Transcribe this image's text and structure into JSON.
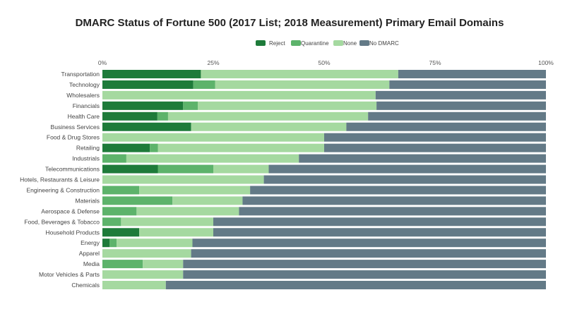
{
  "chart_data": {
    "type": "bar",
    "orientation": "horizontal",
    "stacked": true,
    "title": "DMARC Status of Fortune 500 (2017 List; 2018 Measurement) Primary Email Domains",
    "xlabel": "",
    "ylabel": "",
    "xlim": [
      0,
      100
    ],
    "x_ticks": [
      0,
      25,
      50,
      75,
      100
    ],
    "x_tick_labels": [
      "0%",
      "25%",
      "50%",
      "75%",
      "100%"
    ],
    "x_axis_position": "top",
    "legend_position": "top-center",
    "grid": false,
    "categories": [
      "Transportation",
      "Technology",
      "Wholesalers",
      "Financials",
      "Health Care",
      "Business Services",
      "Food & Drug Stores",
      "Retailing",
      "Industrials",
      "Telecommunications",
      "Hotels, Restaurants & Leisure",
      "Engineering & Construction",
      "Materials",
      "Aerospace & Defense",
      "Food, Beverages & Tobacco",
      "Household Products",
      "Energy",
      "Apparel",
      "Media",
      "Motor Vehicles & Parts",
      "Chemicals"
    ],
    "series": [
      {
        "name": "Reject",
        "color": "#1e7b3a",
        "values": [
          22.2,
          20.5,
          0,
          18.2,
          12.4,
          20.0,
          0,
          10.7,
          0,
          12.5,
          0,
          0,
          0,
          0,
          0,
          8.3,
          1.6,
          0,
          0,
          0,
          0
        ]
      },
      {
        "name": "Quarantine",
        "color": "#5db36b",
        "values": [
          0,
          4.9,
          0,
          3.3,
          2.4,
          0,
          0,
          1.8,
          5.4,
          12.5,
          0,
          8.3,
          15.8,
          7.7,
          4.2,
          0,
          1.6,
          0,
          9.1,
          0,
          0
        ]
      },
      {
        "name": "None",
        "color": "#a5d9a0",
        "values": [
          44.5,
          39.3,
          61.6,
          40.3,
          45.1,
          35.0,
          50.0,
          37.5,
          38.9,
          12.5,
          36.4,
          25.0,
          15.8,
          23.1,
          20.8,
          16.7,
          17.1,
          20.0,
          9.1,
          18.2,
          14.3
        ]
      },
      {
        "name": "No DMARC",
        "color": "#637a87",
        "values": [
          33.3,
          35.3,
          38.4,
          38.2,
          40.1,
          45.0,
          50.0,
          50.0,
          55.7,
          62.5,
          63.6,
          66.7,
          68.4,
          69.2,
          75.0,
          75.0,
          79.7,
          80.0,
          81.8,
          81.8,
          85.7
        ]
      }
    ]
  }
}
